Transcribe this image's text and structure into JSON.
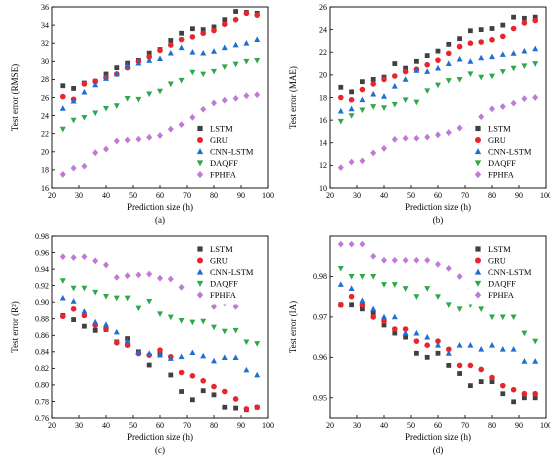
{
  "colors": {
    "LSTM": "#404040",
    "GRU": "#e8252a",
    "CNN-LSTM": "#1f6fd1",
    "DAQFF": "#2ea84a",
    "FPHFA": "#bf7ad6"
  },
  "markers": {
    "LSTM": "square",
    "GRU": "circle",
    "CNN-LSTM": "triangle-up",
    "DAQFF": "triangle-down",
    "FPHFA": "diamond"
  },
  "chart_data": [
    {
      "type": "scatter",
      "panel_label": "(a)",
      "xlabel": "Prediction size (h)",
      "ylabel": "Test error (RMSE)",
      "xlim": [
        20,
        100
      ],
      "ylim": [
        16,
        36
      ],
      "x_ticks": [
        "20",
        "30",
        "40",
        "50",
        "60",
        "70",
        "80",
        "90",
        "100"
      ],
      "y_ticks": [
        "16",
        "18",
        "20",
        "22",
        "24",
        "26",
        "28",
        "30",
        "32",
        "34",
        "36"
      ],
      "legend_position": "lower-right",
      "x": [
        24,
        28,
        32,
        36,
        40,
        44,
        48,
        52,
        56,
        60,
        64,
        68,
        72,
        76,
        80,
        84,
        88,
        92,
        96
      ],
      "series": [
        {
          "name": "LSTM",
          "values": [
            27.3,
            27.0,
            27.6,
            27.8,
            28.6,
            29.3,
            29.8,
            30.1,
            30.9,
            31.3,
            32.3,
            33.1,
            33.6,
            33.5,
            33.8,
            34.6,
            35.5,
            35.4,
            35.3
          ]
        },
        {
          "name": "GRU",
          "values": [
            26.1,
            25.8,
            27.5,
            27.8,
            28.2,
            28.6,
            29.3,
            30.0,
            30.5,
            31.2,
            31.8,
            32.4,
            32.7,
            33.1,
            33.4,
            34.1,
            34.6,
            35.3,
            35.1
          ]
        },
        {
          "name": "CNN-LSTM",
          "values": [
            24.8,
            25.6,
            26.6,
            27.4,
            28.1,
            28.6,
            29.5,
            29.8,
            30.1,
            30.3,
            30.9,
            31.5,
            31.0,
            30.9,
            31.1,
            31.5,
            31.8,
            32.0,
            32.4
          ]
        },
        {
          "name": "DAQFF",
          "values": [
            22.5,
            23.5,
            23.8,
            24.3,
            24.8,
            25.1,
            25.9,
            25.8,
            26.4,
            26.7,
            27.5,
            27.9,
            28.8,
            28.6,
            28.9,
            29.4,
            29.7,
            30.0,
            30.1
          ]
        },
        {
          "name": "FPHFA",
          "values": [
            17.5,
            18.2,
            18.4,
            19.9,
            20.3,
            21.2,
            21.3,
            21.4,
            21.6,
            21.8,
            22.5,
            23.0,
            23.8,
            24.7,
            25.4,
            25.7,
            25.9,
            26.2,
            26.3
          ]
        }
      ]
    },
    {
      "type": "scatter",
      "panel_label": "(b)",
      "xlabel": "Prediction size (h)",
      "ylabel": "Test error (MAE)",
      "xlim": [
        20,
        100
      ],
      "ylim": [
        10,
        26
      ],
      "x_ticks": [
        "20",
        "30",
        "40",
        "50",
        "60",
        "70",
        "80",
        "90",
        "100"
      ],
      "y_ticks": [
        "10",
        "12",
        "14",
        "16",
        "18",
        "20",
        "22",
        "24",
        "26"
      ],
      "legend_position": "lower-right",
      "x": [
        24,
        28,
        32,
        36,
        40,
        44,
        48,
        52,
        56,
        60,
        64,
        68,
        72,
        76,
        80,
        84,
        88,
        92,
        96
      ],
      "series": [
        {
          "name": "LSTM",
          "values": [
            18.9,
            18.5,
            19.4,
            19.6,
            19.8,
            21.0,
            20.6,
            21.2,
            21.7,
            22.1,
            22.7,
            23.2,
            23.9,
            24.0,
            24.1,
            24.4,
            25.1,
            25.0,
            25.1
          ]
        },
        {
          "name": "GRU",
          "values": [
            18.0,
            17.8,
            18.7,
            19.2,
            19.6,
            19.9,
            20.3,
            20.5,
            20.9,
            21.3,
            21.9,
            22.5,
            22.8,
            22.9,
            23.1,
            23.4,
            24.1,
            24.6,
            24.8
          ]
        },
        {
          "name": "CNN-LSTM",
          "values": [
            16.8,
            17.0,
            17.8,
            18.3,
            18.1,
            19.0,
            19.6,
            20.4,
            20.3,
            20.6,
            21.0,
            21.4,
            21.2,
            21.5,
            21.6,
            21.8,
            21.9,
            22.1,
            22.3
          ]
        },
        {
          "name": "DAQFF",
          "values": [
            15.9,
            16.4,
            16.9,
            17.2,
            17.1,
            17.4,
            17.8,
            17.6,
            18.6,
            19.1,
            19.5,
            19.6,
            20.1,
            19.8,
            19.9,
            20.3,
            20.6,
            20.8,
            21.0
          ]
        },
        {
          "name": "FPHFA",
          "values": [
            11.8,
            12.3,
            12.4,
            13.1,
            13.5,
            14.3,
            14.4,
            14.4,
            14.5,
            14.7,
            14.9,
            15.3,
            15.7,
            16.3,
            17.0,
            17.2,
            17.5,
            17.9,
            18.0
          ]
        }
      ]
    },
    {
      "type": "scatter",
      "panel_label": "(c)",
      "xlabel": "Prediction size (h)",
      "ylabel": "Test error (R²)",
      "xlim": [
        20,
        100
      ],
      "ylim": [
        0.76,
        0.98
      ],
      "x_ticks": [
        "20",
        "30",
        "40",
        "50",
        "60",
        "70",
        "80",
        "90",
        "100"
      ],
      "y_ticks": [
        "0.76",
        "0.78",
        "0.80",
        "0.82",
        "0.84",
        "0.86",
        "0.88",
        "0.90",
        "0.92",
        "0.94",
        "0.96",
        "0.98"
      ],
      "legend_position": "upper-right",
      "x": [
        24,
        28,
        32,
        36,
        40,
        44,
        48,
        52,
        56,
        60,
        64,
        68,
        72,
        76,
        80,
        84,
        88,
        92,
        96
      ],
      "series": [
        {
          "name": "LSTM",
          "values": [
            0.884,
            0.879,
            0.871,
            0.866,
            0.867,
            0.852,
            0.856,
            0.84,
            0.824,
            0.838,
            0.812,
            0.792,
            0.782,
            0.793,
            0.788,
            0.773,
            0.772,
            0.77,
            0.773
          ]
        },
        {
          "name": "GRU",
          "values": [
            0.883,
            0.892,
            0.884,
            0.872,
            0.868,
            0.851,
            0.848,
            0.838,
            0.836,
            0.842,
            0.834,
            0.815,
            0.811,
            0.805,
            0.798,
            0.792,
            0.783,
            0.771,
            0.773
          ]
        },
        {
          "name": "CNN-LSTM",
          "values": [
            0.905,
            0.901,
            0.889,
            0.876,
            0.873,
            0.864,
            0.853,
            0.839,
            0.838,
            0.836,
            0.832,
            0.834,
            0.839,
            0.835,
            0.829,
            0.833,
            0.833,
            0.818,
            0.812
          ]
        },
        {
          "name": "DAQFF",
          "values": [
            0.926,
            0.917,
            0.917,
            0.912,
            0.907,
            0.905,
            0.905,
            0.893,
            0.901,
            0.886,
            0.882,
            0.878,
            0.876,
            0.877,
            0.87,
            0.865,
            0.866,
            0.852,
            0.85
          ]
        },
        {
          "name": "FPHFA",
          "values": [
            0.955,
            0.954,
            0.955,
            0.95,
            0.945,
            0.93,
            0.932,
            0.933,
            0.934,
            0.929,
            0.928,
            0.918,
            0.911,
            0.905,
            0.895,
            0.899,
            0.895,
            0.903,
            0.901
          ]
        }
      ]
    },
    {
      "type": "scatter",
      "panel_label": "(d)",
      "xlabel": "Prediction size (h)",
      "ylabel": "Test error (IA)",
      "xlim": [
        20,
        100
      ],
      "ylim": [
        0.945,
        0.99
      ],
      "x_ticks": [
        "20",
        "30",
        "40",
        "50",
        "60",
        "70",
        "80",
        "90",
        "100"
      ],
      "y_ticks": [
        "0.95",
        "0.96",
        "0.97",
        "0.98"
      ],
      "legend_position": "upper-right",
      "x": [
        24,
        28,
        32,
        36,
        40,
        44,
        48,
        52,
        56,
        60,
        64,
        68,
        72,
        76,
        80,
        84,
        88,
        92,
        96
      ],
      "series": [
        {
          "name": "LSTM",
          "values": [
            0.973,
            0.973,
            0.972,
            0.971,
            0.968,
            0.966,
            0.965,
            0.961,
            0.96,
            0.961,
            0.958,
            0.956,
            0.953,
            0.954,
            0.954,
            0.951,
            0.949,
            0.95,
            0.95
          ]
        },
        {
          "name": "GRU",
          "values": [
            0.973,
            0.975,
            0.973,
            0.97,
            0.969,
            0.967,
            0.967,
            0.964,
            0.963,
            0.964,
            0.962,
            0.958,
            0.958,
            0.957,
            0.955,
            0.953,
            0.952,
            0.951,
            0.951
          ]
        },
        {
          "name": "CNN-LSTM",
          "values": [
            0.978,
            0.977,
            0.974,
            0.972,
            0.97,
            0.97,
            0.966,
            0.966,
            0.965,
            0.963,
            0.961,
            0.963,
            0.963,
            0.962,
            0.963,
            0.962,
            0.962,
            0.959,
            0.959
          ]
        },
        {
          "name": "DAQFF",
          "values": [
            0.982,
            0.98,
            0.98,
            0.98,
            0.978,
            0.978,
            0.977,
            0.975,
            0.977,
            0.975,
            0.973,
            0.972,
            0.973,
            0.972,
            0.97,
            0.97,
            0.97,
            0.966,
            0.964
          ]
        },
        {
          "name": "FPHFA",
          "values": [
            0.988,
            0.988,
            0.988,
            0.985,
            0.984,
            0.984,
            0.984,
            0.984,
            0.984,
            0.983,
            0.982,
            0.98,
            0.977,
            0.976,
            0.975,
            0.976,
            0.976,
            0.976,
            0.975
          ]
        }
      ]
    }
  ]
}
